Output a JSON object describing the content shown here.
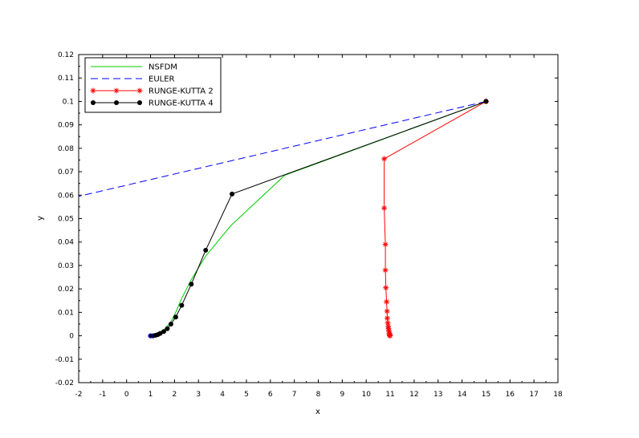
{
  "chart_data": {
    "type": "line",
    "title": "",
    "xlabel": "x",
    "ylabel": "y",
    "xlim": [
      -2,
      18
    ],
    "ylim": [
      -0.02,
      0.12
    ],
    "x_ticks": [
      "-2",
      "-1",
      "0",
      "1",
      "2",
      "3",
      "4",
      "5",
      "6",
      "7",
      "8",
      "9",
      "10",
      "11",
      "12",
      "13",
      "14",
      "15",
      "16",
      "17",
      "18"
    ],
    "y_ticks": [
      "-0.02",
      "-0.01",
      "0",
      "0.01",
      "0.02",
      "0.03",
      "0.04",
      "0.05",
      "0.06",
      "0.07",
      "0.08",
      "0.09",
      "0.1",
      "0.11",
      "0.12"
    ],
    "legend_position": "top-left",
    "series": [
      {
        "name": "NSFDM",
        "color": "#00cc00",
        "style": "solid",
        "marker": "none",
        "points": [
          [
            15.0,
            0.1
          ],
          [
            6.6,
            0.0685
          ],
          [
            4.35,
            0.047
          ],
          [
            3.3,
            0.034
          ],
          [
            2.7,
            0.024
          ],
          [
            2.3,
            0.016
          ],
          [
            2.05,
            0.01
          ],
          [
            1.85,
            0.006
          ],
          [
            1.6,
            0.003
          ],
          [
            1.4,
            0.0015
          ],
          [
            1.2,
            0.0006
          ],
          [
            1.05,
            0.0002
          ],
          [
            1.0,
            0.0
          ]
        ]
      },
      {
        "name": "EULER",
        "color": "#0000ff",
        "style": "dashed",
        "marker": "none",
        "points": [
          [
            15.0,
            0.1
          ],
          [
            -2.0,
            0.0595
          ]
        ]
      },
      {
        "name": "RUNGE-KUTTA 2",
        "color": "#ff0000",
        "style": "solid",
        "marker": "star",
        "points": [
          [
            15.0,
            0.1
          ],
          [
            10.75,
            0.0755
          ],
          [
            10.75,
            0.0545
          ],
          [
            10.8,
            0.039
          ],
          [
            10.8,
            0.028
          ],
          [
            10.82,
            0.0205
          ],
          [
            10.85,
            0.0145
          ],
          [
            10.87,
            0.0105
          ],
          [
            10.88,
            0.0075
          ],
          [
            10.9,
            0.0055
          ],
          [
            10.92,
            0.004
          ],
          [
            10.93,
            0.003
          ],
          [
            10.95,
            0.002
          ],
          [
            10.96,
            0.0012
          ],
          [
            10.97,
            0.0006
          ],
          [
            10.98,
            0.0002
          ],
          [
            11.0,
            0.0
          ]
        ]
      },
      {
        "name": "RUNGE-KUTTA 4",
        "color": "#000000",
        "style": "solid",
        "marker": "dot",
        "points": [
          [
            15.0,
            0.1
          ],
          [
            4.4,
            0.0605
          ],
          [
            3.3,
            0.0365
          ],
          [
            2.7,
            0.022
          ],
          [
            2.3,
            0.013
          ],
          [
            2.05,
            0.008
          ],
          [
            1.85,
            0.005
          ],
          [
            1.7,
            0.003
          ],
          [
            1.55,
            0.0018
          ],
          [
            1.4,
            0.001
          ],
          [
            1.3,
            0.0005
          ],
          [
            1.2,
            0.0002
          ],
          [
            1.1,
            0.0
          ],
          [
            1.0,
            0.0
          ]
        ]
      }
    ],
    "extra_markers": [
      {
        "type": "blue-circle",
        "x": 1.0,
        "y": 0.0
      }
    ]
  }
}
